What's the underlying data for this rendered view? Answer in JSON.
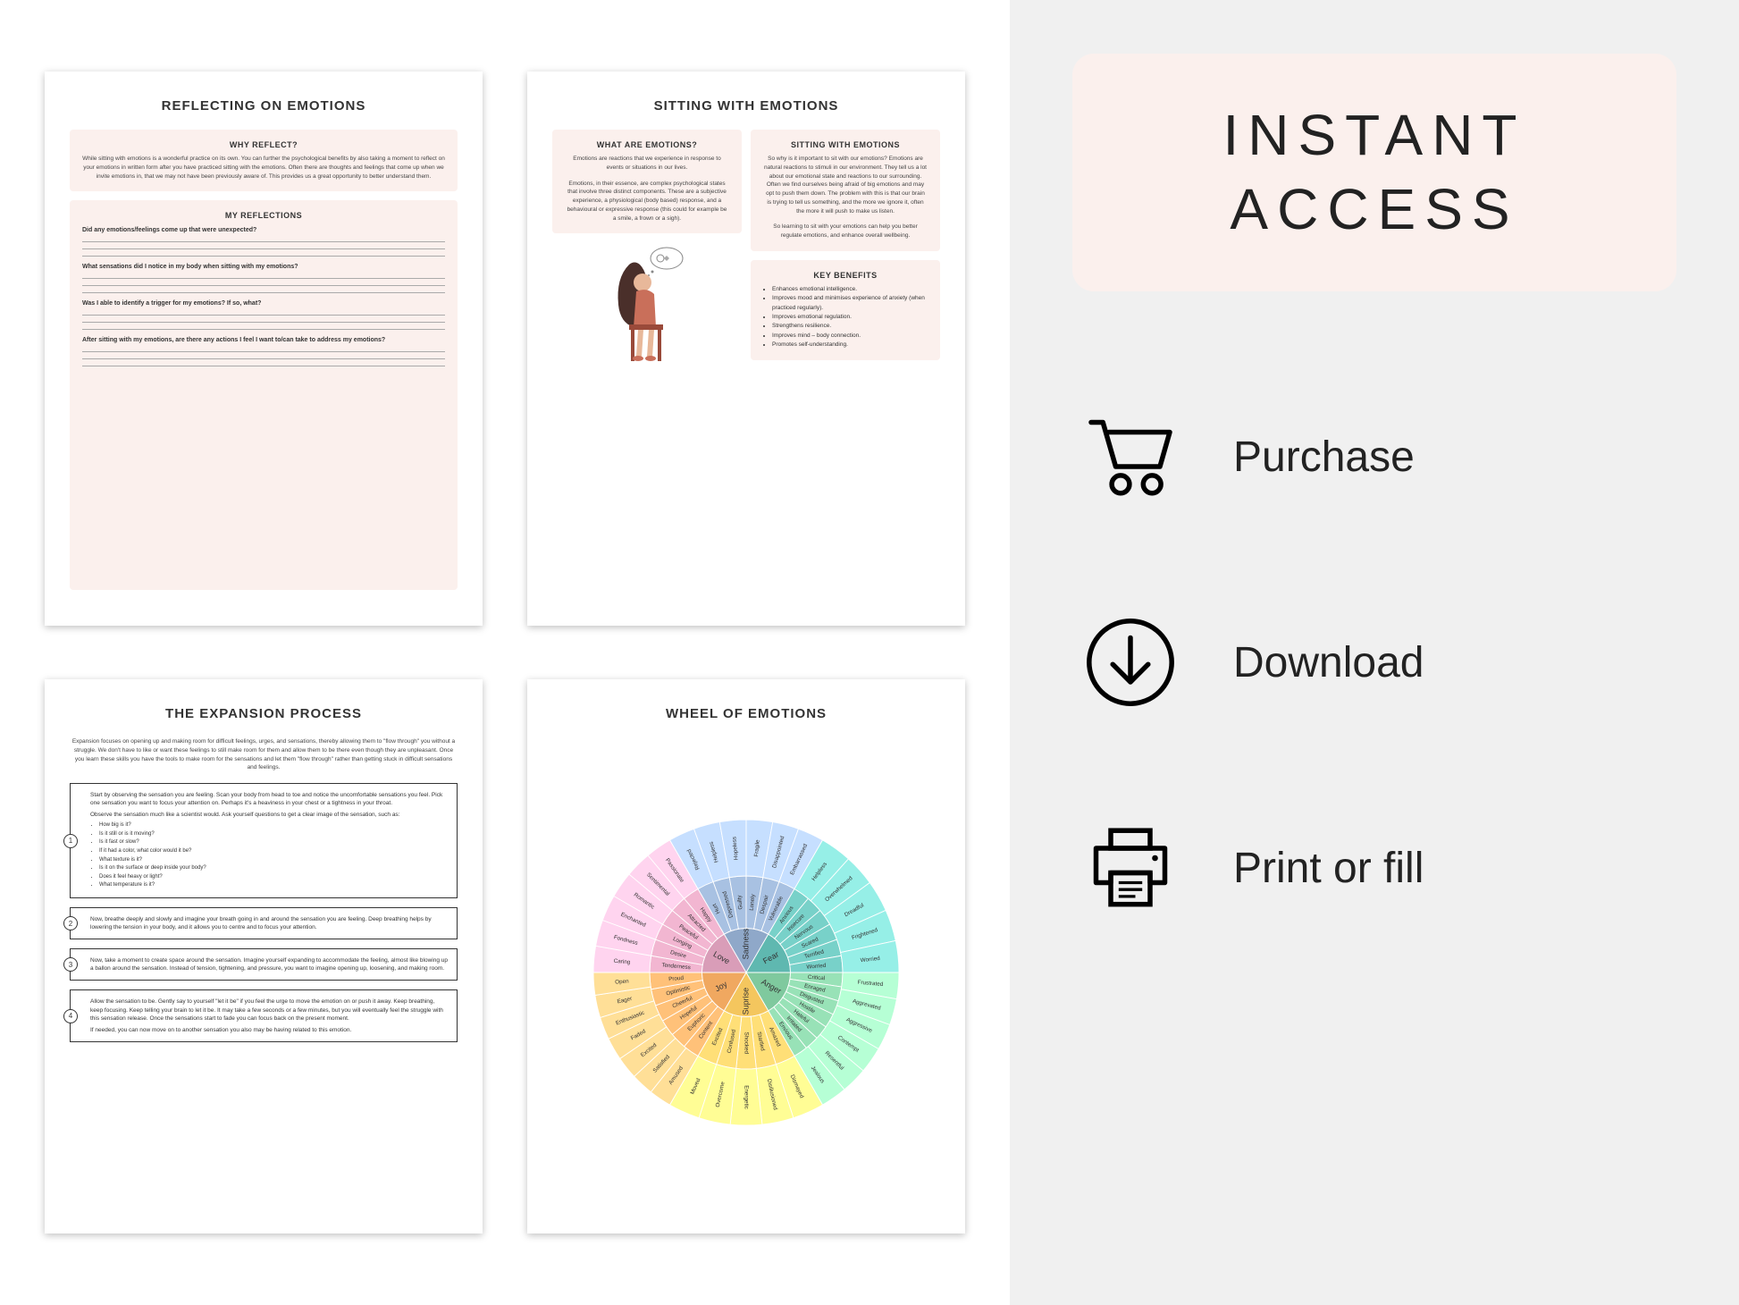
{
  "pages": {
    "reflecting": {
      "title": "REFLECTING ON EMOTIONS",
      "why_title": "WHY REFLECT?",
      "why_body": "While sitting with emotions is a wonderful practice on its own. You can further the psychological benefits by also taking a moment to reflect on your emotions in written form after you have practiced sitting with the emotions. Often there are thoughts and feelings that come up when we invite emotions in, that we may not have been previously aware of. This provides us a great opportunity to better understand them.",
      "refl_title": "MY REFLECTIONS",
      "q1": "Did any emotions/feelings come up that were unexpected?",
      "q2": "What sensations did I notice in my body when sitting with my emotions?",
      "q3": "Was I able to identify a trigger for my emotions? If so, what?",
      "q4": "After sitting with my emotions, are there any actions I feel I want to/can take to address my emotions?"
    },
    "sitting": {
      "title": "SITTING WITH EMOTIONS",
      "what_title": "WHAT ARE EMOTIONS?",
      "what_body1": "Emotions are reactions that we experience in response to events or situations in our lives.",
      "what_body2": "Emotions, in their essence, are complex psychological states that involve three distinct components. These are a subjective experience, a physiological (body based) response, and a behavioural or expressive response (this could for example be a smile, a frown or a sigh).",
      "sit_title": "SITTING WITH EMOTIONS",
      "sit_body1": "So why is it important to sit with our emotions? Emotions are natural reactions to stimuli in our environment. They tell us a lot about our emotional state and reactions to our surrounding. Often we find ourselves being afraid of big emotions and may opt to push them down. The problem with this is that our brain is trying to tell us something, and the more we ignore it, often the more it will push to make us listen.",
      "sit_body2": "So learning to sit with your emotions can help you better regulate emotions, and enhance overall wellbeing.",
      "benefits_title": "KEY BENEFITS",
      "benefits": [
        "Enhances emotional intelligence.",
        "Improves mood and minimises experience of anxiety (when practiced regularly).",
        "Improves emotional regulation.",
        "Strengthens resilience.",
        "Improves mind – body connection.",
        "Promotes self-understanding."
      ]
    },
    "expansion": {
      "title": "THE EXPANSION PROCESS",
      "intro": "Expansion focuses on opening up and making room for difficult feelings, urges, and sensations, thereby allowing them to \"flow through\" you without a struggle. We don't have to like or want these feelings to still make room for them and allow them to be there even though they are unpleasant. Once you learn these skills you have the tools to make room for the sensations and let them \"flow through\" rather than getting stuck in difficult sensations and feelings.",
      "step1a": "Start by observing the sensation you are feeling. Scan your body from head to toe and notice the uncomfortable sensations you feel. Pick one sensation you want to focus your attention on. Perhaps it's a heaviness in your chest or a tightness in your throat.",
      "step1b": "Observe the sensation much like a scientist would. Ask yourself questions to get a clear image of the sensation, such as:",
      "step1_bullets": [
        "How big is it?",
        "Is it still or is it moving?",
        "Is it fast or slow?",
        "If it had a color, what color would it be?",
        "What texture is it?",
        "Is it on the surface or deep inside your body?",
        "Does it feel heavy or light?",
        "What temperature is it?"
      ],
      "step2": "Now, breathe deeply and slowly and imagine your breath going in and around the sensation you are feeling. Deep breathing helps by lowering the tension in your body, and it allows you to centre and to focus your attention.",
      "step3": "Now, take a moment to create space around the sensation. Imagine yourself expanding to accommodate the feeling, almost like blowing up a ballon around the sensation. Instead of tension, tightening, and  pressure, you want to imagine opening up, loosening, and making room.",
      "step4a": "Allow the sensation to be. Gently say to yourself \"let it be\" if you feel the urge to move the emotion on or push it away. Keep breathing, keep focusing. Keep telling your brain to let it be. It may take a few seconds or a few minutes, but you will eventually feel the struggle with this sensation release. Once the sensations start to fade you can focus back on the present moment.",
      "step4b": "If needed, you can now move on to another sensation you also may be having related to this emotion."
    },
    "wheel": {
      "title": "WHEEL OF EMOTIONS",
      "core": [
        "Sadness",
        "Fear",
        "Anger",
        "Suprise",
        "Joy",
        "Love"
      ],
      "core_colors": [
        "#8fa8c9",
        "#5fb8b0",
        "#7fc99e",
        "#f4c65e",
        "#f0a860",
        "#d99db8"
      ],
      "mid": {
        "Sadness": [
          "Hurt",
          "Depressed",
          "Guilty",
          "Lonely",
          "Despair",
          "Vulnerable"
        ],
        "Fear": [
          "Anxious",
          "Insecure",
          "Nervous",
          "Scared",
          "Terrified",
          "Worried"
        ],
        "Anger": [
          "Critical",
          "Enraged",
          "Disgusted",
          "Hostile",
          "Hateful",
          "Irritated",
          "Envious"
        ],
        "Suprise": [
          "Amazed",
          "Startled",
          "Shocked",
          "Confused",
          "Excited"
        ],
        "Joy": [
          "Content",
          "Euphoric",
          "Hopeful",
          "Cheerful",
          "Optimistic",
          "Proud"
        ],
        "Love": [
          "Tenderness",
          "Desire",
          "Longing",
          "Peaceful",
          "Attracted",
          "Happy"
        ]
      },
      "outer": {
        "Sadness": [
          "Rejected",
          "Helpless",
          "Hopeless",
          "Fragile",
          "Disappointed",
          "Embarrassed"
        ],
        "Fear": [
          "Helpless",
          "Overwhelmed",
          "Dreadful",
          "Frightened",
          "Worried"
        ],
        "Anger": [
          "Frustrated",
          "Aggrevated",
          "Aggressive",
          "Contempt",
          "Resentful",
          "Jealous"
        ],
        "Suprise": [
          "Dismayed",
          "Disillusioned",
          "Energetic",
          "Overcome",
          "Moved"
        ],
        "Joy": [
          "Amused",
          "Satisfied",
          "Excited",
          "Faded",
          "Enthusiastic",
          "Eager",
          "Open"
        ],
        "Love": [
          "Caring",
          "Fondness",
          "Enchanted",
          "Romantic",
          "Sentimental",
          "Passionate"
        ]
      }
    }
  },
  "sidebar": {
    "badge_line1": "INSTANT",
    "badge_line2": "ACCESS",
    "badge_bg": "#fbf0ed",
    "steps": [
      {
        "icon": "cart",
        "label": "Purchase"
      },
      {
        "icon": "download",
        "label": "Download"
      },
      {
        "icon": "printer",
        "label": "Print or fill"
      }
    ]
  },
  "colors": {
    "panel_bg": "#f0f0f0",
    "pink_box": "#fbf0ed",
    "text": "#222222"
  }
}
